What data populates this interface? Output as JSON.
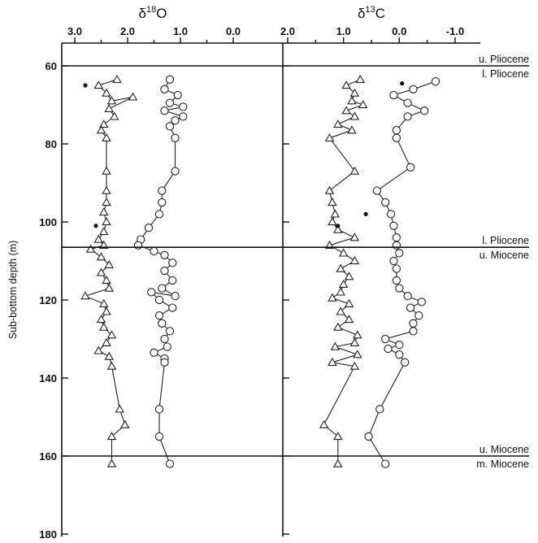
{
  "chart_data": [
    {
      "type": "line",
      "panel": "d18O",
      "title": "δ18O",
      "title_symbol": "δ",
      "title_super": "18",
      "title_element": "O",
      "xlabel": "",
      "ylabel": "Sub-bottom depth (m)",
      "xlim": [
        3.0,
        0.0
      ],
      "ylim": [
        60,
        180
      ],
      "x_ticks": [
        3.0,
        2.5,
        2.0,
        1.5,
        1.0,
        0.5,
        0.0
      ],
      "x_tick_labels": [
        "3.0",
        "2.0",
        "1.0",
        "0.0"
      ],
      "x_tick_label_values": [
        3.0,
        2.0,
        1.0,
        0.0
      ],
      "y_ticks": [
        60,
        80,
        100,
        120,
        140,
        160,
        180
      ],
      "series": [
        {
          "marker": "triangle",
          "points": [
            [
              2.2,
              63.5
            ],
            [
              2.55,
              65.0
            ],
            [
              2.4,
              67.0
            ],
            [
              2.3,
              69.0
            ],
            [
              1.9,
              68.0
            ],
            [
              2.35,
              71.0
            ],
            [
              2.25,
              73.0
            ],
            [
              2.45,
              75.0
            ],
            [
              2.5,
              76.5
            ],
            [
              2.4,
              78.5
            ],
            [
              2.4,
              87.0
            ],
            [
              2.4,
              92.0
            ],
            [
              2.4,
              95.0
            ],
            [
              2.45,
              97.5
            ],
            [
              2.4,
              100.0
            ],
            [
              2.45,
              102.5
            ],
            [
              2.55,
              104.5
            ],
            [
              2.45,
              106.0
            ],
            [
              2.7,
              107.0
            ],
            [
              2.5,
              109.0
            ],
            [
              2.35,
              111.0
            ],
            [
              2.5,
              113.0
            ],
            [
              2.4,
              115.0
            ],
            [
              2.35,
              117.0
            ],
            [
              2.8,
              119.0
            ],
            [
              2.45,
              121.0
            ],
            [
              2.4,
              123.0
            ],
            [
              2.5,
              125.0
            ],
            [
              2.45,
              127.0
            ],
            [
              2.3,
              129.0
            ],
            [
              2.4,
              131.0
            ],
            [
              2.55,
              133.0
            ],
            [
              2.35,
              134.5
            ],
            [
              2.3,
              137.0
            ],
            [
              2.15,
              148.0
            ],
            [
              2.05,
              152.0
            ],
            [
              2.3,
              155.0
            ],
            [
              2.3,
              162.0
            ]
          ]
        },
        {
          "marker": "circle",
          "points": [
            [
              1.2,
              63.5
            ],
            [
              1.3,
              66.0
            ],
            [
              1.05,
              67.5
            ],
            [
              1.2,
              69.5
            ],
            [
              0.95,
              70.5
            ],
            [
              1.3,
              71.5
            ],
            [
              0.95,
              73.0
            ],
            [
              1.1,
              74.0
            ],
            [
              1.2,
              75.5
            ],
            [
              1.1,
              78.5
            ],
            [
              1.1,
              87.0
            ],
            [
              1.35,
              92.0
            ],
            [
              1.35,
              95.0
            ],
            [
              1.4,
              98.0
            ],
            [
              1.6,
              101.5
            ],
            [
              1.75,
              104.5
            ],
            [
              1.8,
              106.0
            ],
            [
              1.5,
              107.5
            ],
            [
              1.3,
              108.5
            ],
            [
              1.15,
              110.5
            ],
            [
              1.3,
              112.5
            ],
            [
              1.15,
              115.0
            ],
            [
              1.35,
              117.0
            ],
            [
              1.1,
              119.0
            ],
            [
              1.55,
              118.0
            ],
            [
              1.4,
              120.0
            ],
            [
              1.15,
              122.0
            ],
            [
              1.4,
              124.0
            ],
            [
              1.35,
              126.0
            ],
            [
              1.2,
              128.0
            ],
            [
              1.3,
              130.0
            ],
            [
              1.25,
              132.0
            ],
            [
              1.5,
              133.5
            ],
            [
              1.3,
              135.0
            ],
            [
              1.3,
              136.0
            ],
            [
              1.4,
              148.0
            ],
            [
              1.4,
              155.0
            ],
            [
              1.2,
              162.0
            ]
          ]
        }
      ],
      "isolated_points": [
        [
          2.8,
          65.0
        ],
        [
          2.6,
          101.0
        ]
      ]
    },
    {
      "type": "line",
      "panel": "d13C",
      "title": "δ13C",
      "title_symbol": "δ",
      "title_super": "13",
      "title_element": "C",
      "xlabel": "",
      "ylabel": "",
      "xlim": [
        2.0,
        -1.0
      ],
      "ylim": [
        60,
        180
      ],
      "x_ticks": [
        2.0,
        1.5,
        1.0,
        0.5,
        0.0,
        -0.5,
        -1.0
      ],
      "x_tick_labels": [
        "2.0",
        "1.0",
        "0.0",
        "-1.0"
      ],
      "x_tick_label_values": [
        2.0,
        1.0,
        0.0,
        -1.0
      ],
      "y_ticks": [
        60,
        80,
        100,
        120,
        140,
        160,
        180
      ],
      "series": [
        {
          "marker": "triangle",
          "points": [
            [
              0.7,
              63.5
            ],
            [
              0.95,
              65.0
            ],
            [
              0.8,
              67.0
            ],
            [
              0.85,
              69.0
            ],
            [
              0.65,
              70.0
            ],
            [
              0.95,
              71.5
            ],
            [
              0.8,
              73.0
            ],
            [
              1.1,
              75.0
            ],
            [
              0.85,
              76.5
            ],
            [
              1.25,
              78.5
            ],
            [
              0.8,
              87.0
            ],
            [
              1.25,
              92.0
            ],
            [
              1.2,
              95.0
            ],
            [
              1.15,
              98.0
            ],
            [
              1.2,
              100.0
            ],
            [
              1.1,
              102.0
            ],
            [
              0.8,
              104.0
            ],
            [
              1.25,
              106.0
            ],
            [
              1.0,
              108.0
            ],
            [
              0.8,
              110.0
            ],
            [
              1.05,
              112.0
            ],
            [
              0.9,
              114.0
            ],
            [
              1.0,
              116.0
            ],
            [
              1.05,
              118.0
            ],
            [
              1.2,
              119.5
            ],
            [
              0.9,
              121.0
            ],
            [
              1.05,
              123.0
            ],
            [
              0.9,
              125.0
            ],
            [
              1.1,
              127.0
            ],
            [
              0.75,
              129.0
            ],
            [
              0.8,
              131.0
            ],
            [
              1.15,
              132.0
            ],
            [
              0.75,
              134.0
            ],
            [
              1.2,
              136.0
            ],
            [
              0.8,
              137.0
            ],
            [
              1.35,
              152.0
            ],
            [
              1.1,
              155.0
            ],
            [
              1.1,
              162.0
            ]
          ]
        },
        {
          "marker": "circle",
          "points": [
            [
              -0.65,
              64.0
            ],
            [
              -0.25,
              66.0
            ],
            [
              0.1,
              67.5
            ],
            [
              -0.15,
              69.5
            ],
            [
              -0.45,
              71.5
            ],
            [
              -0.15,
              73.0
            ],
            [
              0.05,
              76.5
            ],
            [
              0.05,
              78.5
            ],
            [
              -0.2,
              86.0
            ],
            [
              0.4,
              92.0
            ],
            [
              0.25,
              95.0
            ],
            [
              0.15,
              98.0
            ],
            [
              0.1,
              101.0
            ],
            [
              0.05,
              104.0
            ],
            [
              0.05,
              106.0
            ],
            [
              0.0,
              108.0
            ],
            [
              0.1,
              110.0
            ],
            [
              0.05,
              112.0
            ],
            [
              0.05,
              115.0
            ],
            [
              0.0,
              117.0
            ],
            [
              -0.15,
              119.0
            ],
            [
              -0.4,
              120.5
            ],
            [
              -0.2,
              122.0
            ],
            [
              -0.35,
              124.0
            ],
            [
              -0.25,
              126.0
            ],
            [
              -0.25,
              128.0
            ],
            [
              0.25,
              130.0
            ],
            [
              0.0,
              131.5
            ],
            [
              0.2,
              132.5
            ],
            [
              0.0,
              134.0
            ],
            [
              -0.1,
              136.0
            ],
            [
              0.35,
              148.0
            ],
            [
              0.55,
              155.0
            ],
            [
              0.25,
              162.0
            ]
          ]
        }
      ],
      "isolated_points": [
        [
          -0.05,
          64.5
        ],
        [
          0.6,
          98.0
        ],
        [
          1.1,
          101.0
        ]
      ]
    }
  ],
  "boundaries": [
    {
      "depth": 60,
      "labels": [
        "u. Pliocene",
        "l. Pliocene"
      ]
    },
    {
      "depth": 106.5,
      "labels": [
        "l. Pliocene",
        "u. Miocene"
      ]
    },
    {
      "depth": 160,
      "labels": [
        "u. Miocene",
        "m. Miocene"
      ]
    }
  ]
}
